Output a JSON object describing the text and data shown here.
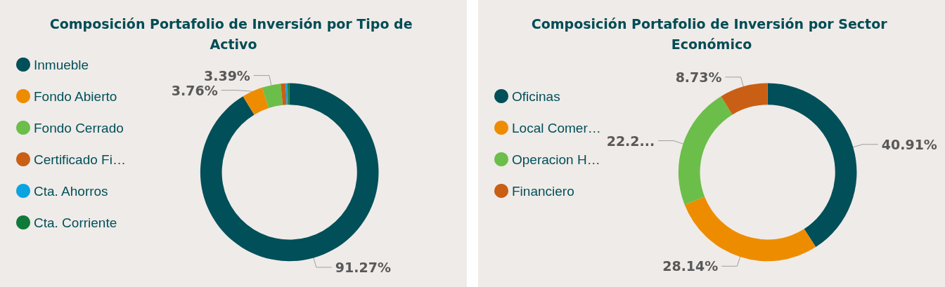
{
  "chart_data": [
    {
      "type": "donut",
      "title": "Composición Portafolio de Inversión por Tipo de Activo",
      "categories": [
        "Inmueble",
        "Fondo Abierto",
        "Fondo Cerrado",
        "Certificado Fi…",
        "Cta. Ahorros",
        "Cta. Corriente"
      ],
      "values": [
        91.27,
        3.76,
        3.39,
        0.9,
        0.35,
        0.33
      ],
      "colors": [
        "#004f59",
        "#ee8c00",
        "#6cbe4a",
        "#c95f14",
        "#0ba3e0",
        "#0f7a3a"
      ],
      "value_labels": [
        "91.27%",
        "3.76%",
        "3.39%",
        null,
        null,
        null
      ],
      "legend": "left"
    },
    {
      "type": "donut",
      "title": "Composición Portafolio de Inversión por Sector Económico",
      "categories": [
        "Oficinas",
        "Local Comer…",
        "Operacion H…",
        "Financiero"
      ],
      "values": [
        40.91,
        28.14,
        22.22,
        8.73
      ],
      "colors": [
        "#004f59",
        "#ee8c00",
        "#6cbe4a",
        "#c95f14"
      ],
      "value_labels": [
        "40.91%",
        "28.14%",
        "22.2...",
        "8.73%"
      ],
      "legend": "left"
    }
  ]
}
